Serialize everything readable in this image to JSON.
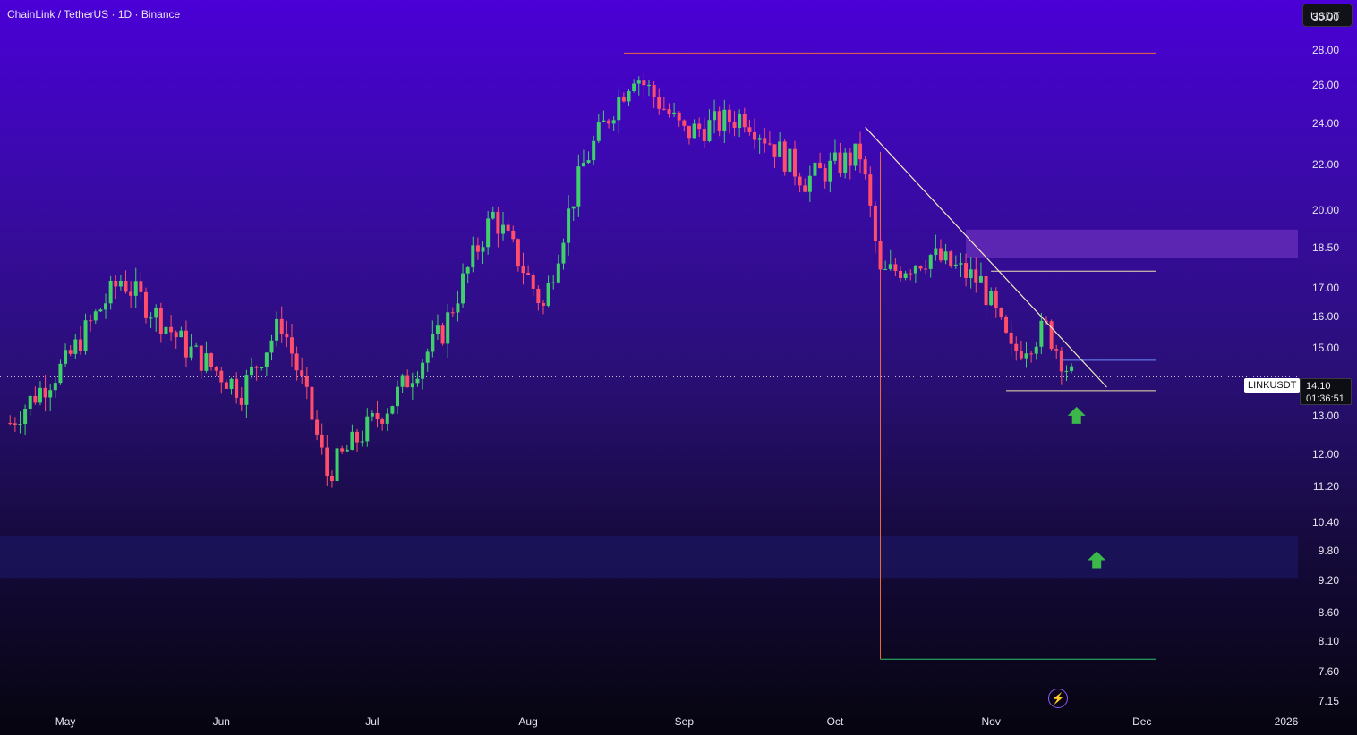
{
  "header": {
    "title": "ChainLink / TetherUS · 1D · Binance",
    "currency_badge": "USDT"
  },
  "price_axis": {
    "ticks": [
      "30.00",
      "28.00",
      "26.00",
      "24.00",
      "22.00",
      "20.00",
      "18.50",
      "17.00",
      "16.00",
      "15.00",
      "13.00",
      "12.00",
      "11.20",
      "10.40",
      "9.80",
      "9.20",
      "8.60",
      "8.10",
      "7.60",
      "7.15"
    ]
  },
  "time_axis": {
    "ticks": [
      "May",
      "Jun",
      "Jul",
      "Aug",
      "Sep",
      "Oct",
      "Nov",
      "Dec",
      "2026"
    ]
  },
  "last_price": {
    "symbol": "LINKUSDT",
    "price": "14.10",
    "countdown": "01:36:51"
  },
  "chart_data": {
    "type": "candlestick",
    "symbol": "LINKUSDT",
    "interval": "1D",
    "exchange": "Binance",
    "y_scale": "log",
    "ylim": [
      7.0,
      30.5
    ],
    "x_range": [
      "2025-04-18",
      "2026-01-01"
    ],
    "approx_close_path": [
      {
        "date": "2025-04-20",
        "close": 12.8
      },
      {
        "date": "2025-05-01",
        "close": 14.5
      },
      {
        "date": "2025-05-12",
        "close": 17.3
      },
      {
        "date": "2025-05-25",
        "close": 15.0
      },
      {
        "date": "2025-06-05",
        "close": 13.7
      },
      {
        "date": "2025-06-13",
        "close": 15.8
      },
      {
        "date": "2025-06-22",
        "close": 11.5
      },
      {
        "date": "2025-07-05",
        "close": 13.4
      },
      {
        "date": "2025-07-15",
        "close": 15.5
      },
      {
        "date": "2025-07-25",
        "close": 19.8
      },
      {
        "date": "2025-08-04",
        "close": 16.3
      },
      {
        "date": "2025-08-12",
        "close": 22.0
      },
      {
        "date": "2025-08-22",
        "close": 26.7
      },
      {
        "date": "2025-09-01",
        "close": 23.5
      },
      {
        "date": "2025-09-13",
        "close": 24.4
      },
      {
        "date": "2025-09-25",
        "close": 21.3
      },
      {
        "date": "2025-10-06",
        "close": 22.5
      },
      {
        "date": "2025-10-10",
        "close": 17.4
      },
      {
        "date": "2025-10-20",
        "close": 18.2
      },
      {
        "date": "2025-10-30",
        "close": 17.2
      },
      {
        "date": "2025-11-05",
        "close": 14.8
      },
      {
        "date": "2025-11-12",
        "close": 15.6
      },
      {
        "date": "2025-11-17",
        "close": 14.1
      }
    ],
    "last_price": 14.1,
    "annotations": {
      "horizontal_levels": [
        27.8,
        17.6,
        14.6,
        13.7
      ],
      "zones": [
        {
          "from": 18.1,
          "to": 19.2,
          "color": "#7b3cc8"
        },
        {
          "from": 9.25,
          "to": 10.1,
          "color": "#1e1a6e"
        }
      ],
      "trendline": {
        "from": {
          "date": "2025-10-07",
          "price": 23.8
        },
        "to": {
          "date": "2025-11-24",
          "price": 13.8
        }
      },
      "range_lines": [
        7.8
      ],
      "arrows": [
        {
          "date": "2025-11-18",
          "price": 13.0,
          "direction": "up"
        },
        {
          "date": "2025-11-22",
          "price": 9.6,
          "direction": "up"
        }
      ]
    },
    "colors": {
      "up": "#26a69a",
      "down": "#ef5350",
      "up_candle": "#3fd06b",
      "down_candle": "#ff4d6a"
    }
  }
}
